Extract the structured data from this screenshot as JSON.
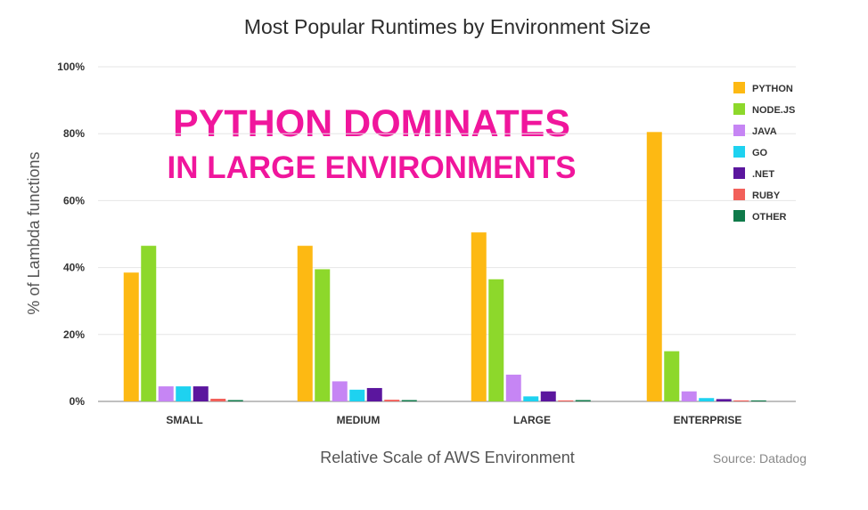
{
  "chart_data": {
    "type": "bar",
    "title": "Most Popular Runtimes by Environment Size",
    "xlabel": "Relative Scale of AWS Environment",
    "ylabel": "% of Lambda functions",
    "ylim": [
      0,
      100
    ],
    "yticks": [
      0,
      20,
      40,
      60,
      80,
      100
    ],
    "ytick_labels": [
      "0%",
      "20%",
      "40%",
      "60%",
      "80%",
      "100%"
    ],
    "grid": true,
    "legend_position": "top-right",
    "categories": [
      "SMALL",
      "MEDIUM",
      "LARGE",
      "ENTERPRISE"
    ],
    "series": [
      {
        "name": "PYTHON",
        "color": "#FDB913",
        "values": [
          38.5,
          46.5,
          50.5,
          80.5
        ]
      },
      {
        "name": "NODE.JS",
        "color": "#8DD82B",
        "values": [
          46.5,
          39.5,
          36.5,
          15
        ]
      },
      {
        "name": "JAVA",
        "color": "#C685F4",
        "values": [
          4.5,
          6,
          8,
          3
        ]
      },
      {
        "name": "GO",
        "color": "#1ED2F0",
        "values": [
          4.5,
          3.5,
          1.5,
          1
        ]
      },
      {
        "name": ".NET",
        "color": "#5B169E",
        "values": [
          4.5,
          4,
          3,
          0.7
        ]
      },
      {
        "name": "RUBY",
        "color": "#F2605A",
        "values": [
          0.8,
          0.5,
          0.3,
          0.3
        ]
      },
      {
        "name": "OTHER",
        "color": "#0F7A4A",
        "values": [
          0.4,
          0.4,
          0.4,
          0.3
        ]
      }
    ],
    "annotations": [
      "PYTHON DOMINATES",
      "IN LARGE ENVIRONMENTS"
    ],
    "annotation_color": "#F0169C",
    "source": "Source: Datadog"
  }
}
